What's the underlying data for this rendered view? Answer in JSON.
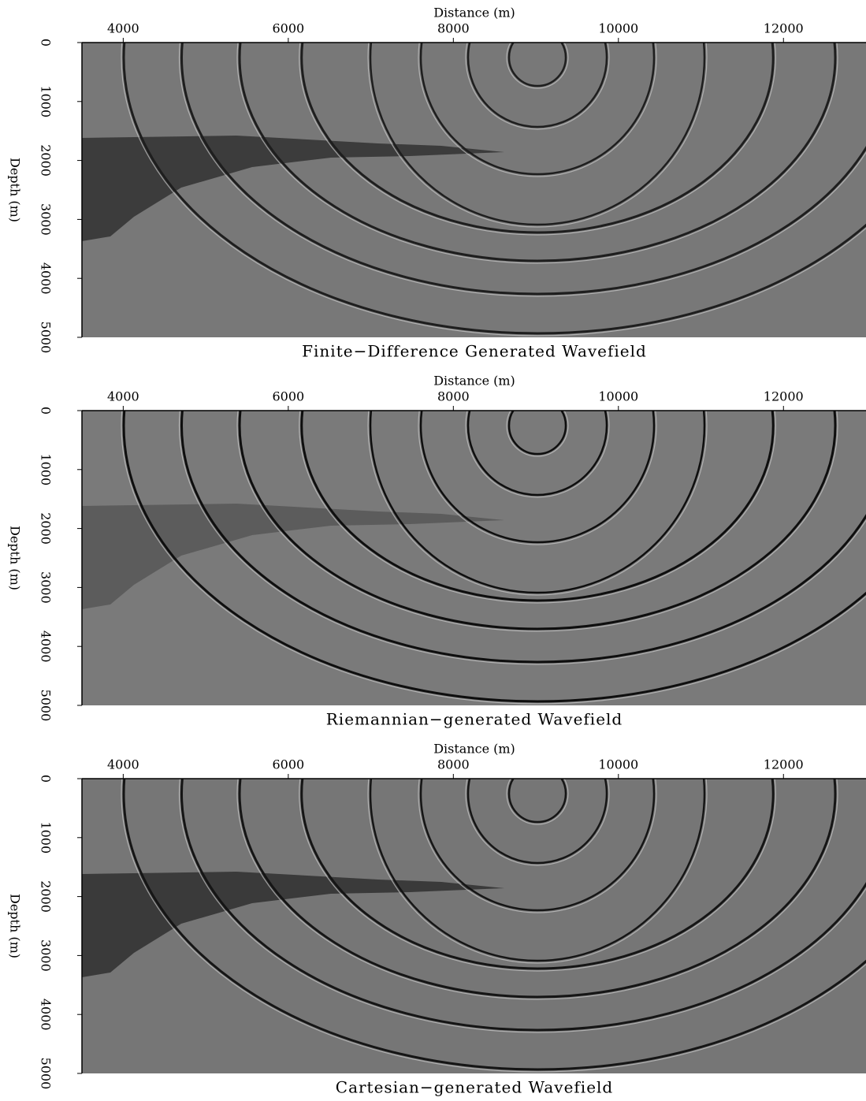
{
  "chart_data": [
    {
      "type": "image",
      "title": "Finite−Difference Generated Wavefield",
      "xlabel": "Distance (m)",
      "ylabel": "Depth (m)",
      "xlim": [
        3500,
        13000
      ],
      "xticks": [
        4000,
        6000,
        8000,
        10000,
        12000
      ],
      "ylim": [
        0,
        5000
      ],
      "yticks": [
        0,
        1000,
        2000,
        3000,
        4000,
        5000
      ],
      "y_inverted": true
    },
    {
      "type": "image",
      "title": "Riemannian−generated Wavefield",
      "xlabel": "Distance (m)",
      "ylabel": "Depth (m)",
      "xlim": [
        3500,
        13000
      ],
      "xticks": [
        4000,
        6000,
        8000,
        10000,
        12000
      ],
      "ylim": [
        0,
        5000
      ],
      "yticks": [
        0,
        1000,
        2000,
        3000,
        4000,
        5000
      ],
      "y_inverted": true
    },
    {
      "type": "image",
      "title": "Cartesian−generated Wavefield",
      "xlabel": "Distance (m)",
      "ylabel": "Depth (m)",
      "xlim": [
        3500,
        13000
      ],
      "xticks": [
        4000,
        6000,
        8000,
        10000,
        12000
      ],
      "ylim": [
        0,
        5000
      ],
      "yticks": [
        0,
        1000,
        2000,
        3000,
        4000,
        5000
      ],
      "y_inverted": true
    }
  ]
}
